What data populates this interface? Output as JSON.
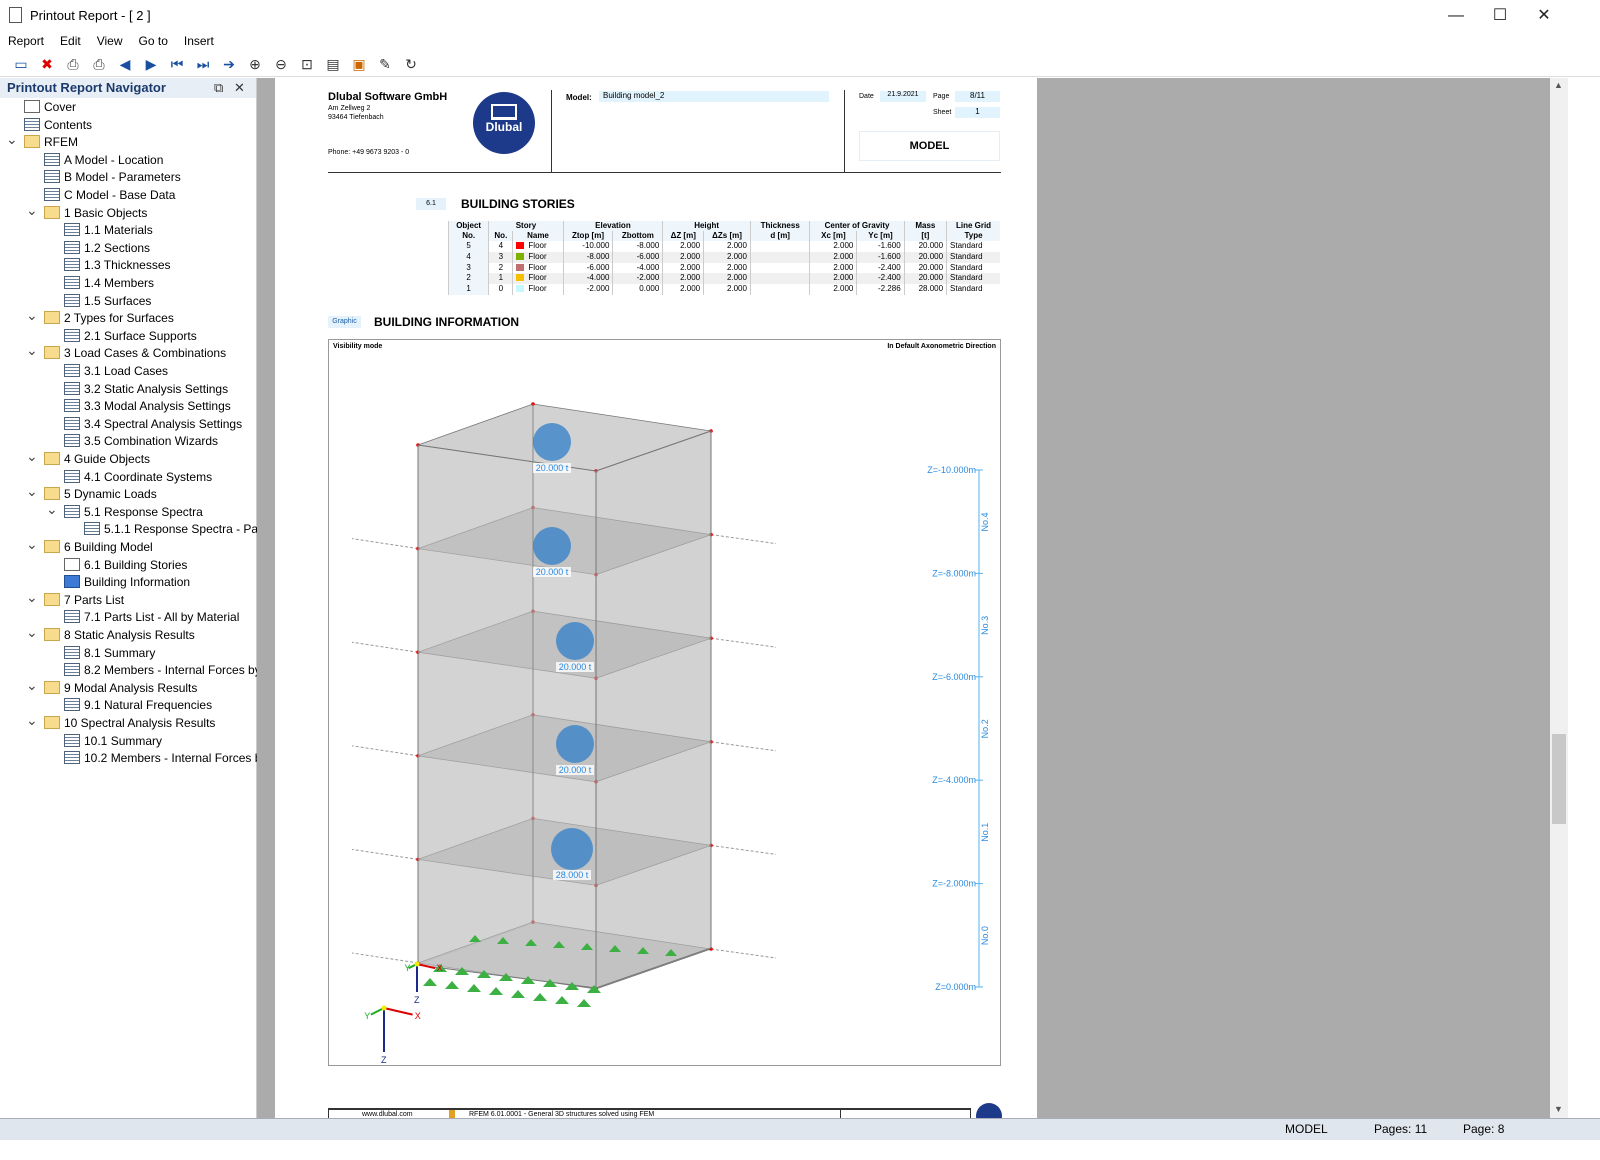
{
  "window": {
    "title": "Printout Report - [ 2 ]"
  },
  "menu": [
    "Report",
    "Edit",
    "View",
    "Go to",
    "Insert"
  ],
  "toolbar": [
    "new-report",
    "delete-report",
    "print",
    "print-setup",
    "previous",
    "next",
    "first",
    "last",
    "jump",
    "zoom-in",
    "zoom-out",
    "fit",
    "page-setup",
    "export",
    "edit",
    "refresh"
  ],
  "navigator": {
    "title": "Printout Report Navigator",
    "items": [
      {
        "label": "Cover",
        "level": 0,
        "icon": "page"
      },
      {
        "label": "Contents",
        "level": 0,
        "icon": "table"
      },
      {
        "label": "RFEM",
        "level": 0,
        "icon": "folder",
        "expanded": true
      },
      {
        "label": "A Model - Location",
        "level": 1,
        "icon": "table"
      },
      {
        "label": "B Model - Parameters",
        "level": 1,
        "icon": "table"
      },
      {
        "label": "C Model - Base Data",
        "level": 1,
        "icon": "table"
      },
      {
        "label": "1 Basic Objects",
        "level": 1,
        "icon": "folder",
        "expanded": true
      },
      {
        "label": "1.1 Materials",
        "level": 2,
        "icon": "table"
      },
      {
        "label": "1.2 Sections",
        "level": 2,
        "icon": "table"
      },
      {
        "label": "1.3 Thicknesses",
        "level": 2,
        "icon": "table"
      },
      {
        "label": "1.4 Members",
        "level": 2,
        "icon": "table"
      },
      {
        "label": "1.5 Surfaces",
        "level": 2,
        "icon": "table"
      },
      {
        "label": "2 Types for Surfaces",
        "level": 1,
        "icon": "folder",
        "expanded": true
      },
      {
        "label": "2.1 Surface Supports",
        "level": 2,
        "icon": "table"
      },
      {
        "label": "3 Load Cases & Combinations",
        "level": 1,
        "icon": "folder",
        "expanded": true
      },
      {
        "label": "3.1 Load Cases",
        "level": 2,
        "icon": "table"
      },
      {
        "label": "3.2 Static Analysis Settings",
        "level": 2,
        "icon": "table"
      },
      {
        "label": "3.3 Modal Analysis Settings",
        "level": 2,
        "icon": "table"
      },
      {
        "label": "3.4 Spectral Analysis Settings",
        "level": 2,
        "icon": "table"
      },
      {
        "label": "3.5 Combination Wizards",
        "level": 2,
        "icon": "table"
      },
      {
        "label": "4 Guide Objects",
        "level": 1,
        "icon": "folder",
        "expanded": true
      },
      {
        "label": "4.1 Coordinate Systems",
        "level": 2,
        "icon": "table"
      },
      {
        "label": "5 Dynamic Loads",
        "level": 1,
        "icon": "folder",
        "expanded": true
      },
      {
        "label": "5.1 Response Spectra",
        "level": 2,
        "icon": "table",
        "expanded": true
      },
      {
        "label": "5.1.1 Response Spectra - Pa...",
        "level": 3,
        "icon": "table"
      },
      {
        "label": "6 Building Model",
        "level": 1,
        "icon": "folder",
        "expanded": true
      },
      {
        "label": "6.1 Building Stories",
        "level": 2,
        "icon": "page"
      },
      {
        "label": "Building Information",
        "level": 2,
        "icon": "chart"
      },
      {
        "label": "7 Parts List",
        "level": 1,
        "icon": "folder",
        "expanded": true
      },
      {
        "label": "7.1 Parts List - All by Material",
        "level": 2,
        "icon": "table"
      },
      {
        "label": "8 Static Analysis Results",
        "level": 1,
        "icon": "folder",
        "expanded": true
      },
      {
        "label": "8.1 Summary",
        "level": 2,
        "icon": "table"
      },
      {
        "label": "8.2 Members - Internal Forces by...",
        "level": 2,
        "icon": "table"
      },
      {
        "label": "9 Modal Analysis Results",
        "level": 1,
        "icon": "folder",
        "expanded": true
      },
      {
        "label": "9.1 Natural Frequencies",
        "level": 2,
        "icon": "table"
      },
      {
        "label": "10 Spectral Analysis Results",
        "level": 1,
        "icon": "folder",
        "expanded": true
      },
      {
        "label": "10.1 Summary",
        "level": 2,
        "icon": "table"
      },
      {
        "label": "10.2 Members - Internal Forces b...",
        "level": 2,
        "icon": "table"
      }
    ]
  },
  "page": {
    "company": "Dlubal Software GmbH",
    "address1": "Am Zellweg 2",
    "address2": "93464 Tiefenbach",
    "phone": "Phone: +49 9673 9203 - 0",
    "logo_text": "Dlubal",
    "model_label": "Model:",
    "model_value": "Building model_2",
    "date_label": "Date",
    "date_value": "21.9.2021",
    "page_label": "Page",
    "page_value": "8/11",
    "sheet_label": "Sheet",
    "sheet_value": "1",
    "section": "MODEL",
    "table_num": "6.1",
    "table_title": "BUILDING STORIES",
    "headers": {
      "obj": "Object",
      "objno": "No.",
      "story": "Story",
      "no": "No.",
      "name": "Name",
      "elev": "Elevation",
      "ztop": "Ztop [m]",
      "zbot": "Zbottom",
      "height": "Height",
      "dz": "ΔZ [m]",
      "dzs": "ΔZs [m]",
      "thick": "Thickness",
      "d": "d [m]",
      "cog": "Center of Gravity",
      "xc": "Xc [m]",
      "yc": "Yc [m]",
      "mass": "Mass",
      "t": "[t]",
      "lg": "Line Grid",
      "type": "Type"
    },
    "rows": [
      {
        "obj": "5",
        "no": "4",
        "color": "#ff0000",
        "name": "Floor",
        "ztop": "-10.000",
        "zbot": "-8.000",
        "dz": "2.000",
        "dzs": "2.000",
        "d": "",
        "xc": "2.000",
        "yc": "-1.600",
        "mass": "20.000",
        "type": "Standard"
      },
      {
        "obj": "4",
        "no": "3",
        "color": "#80b000",
        "name": "Floor",
        "ztop": "-8.000",
        "zbot": "-6.000",
        "dz": "2.000",
        "dzs": "2.000",
        "d": "",
        "xc": "2.000",
        "yc": "-1.600",
        "mass": "20.000",
        "type": "Standard"
      },
      {
        "obj": "3",
        "no": "2",
        "color": "#c07070",
        "name": "Floor",
        "ztop": "-6.000",
        "zbot": "-4.000",
        "dz": "2.000",
        "dzs": "2.000",
        "d": "",
        "xc": "2.000",
        "yc": "-2.400",
        "mass": "20.000",
        "type": "Standard"
      },
      {
        "obj": "2",
        "no": "1",
        "color": "#f5c000",
        "name": "Floor",
        "ztop": "-4.000",
        "zbot": "-2.000",
        "dz": "2.000",
        "dzs": "2.000",
        "d": "",
        "xc": "2.000",
        "yc": "-2.400",
        "mass": "20.000",
        "type": "Standard"
      },
      {
        "obj": "1",
        "no": "0",
        "color": "#c8f8ff",
        "name": "Floor",
        "ztop": "-2.000",
        "zbot": "0.000",
        "dz": "2.000",
        "dzs": "2.000",
        "d": "",
        "xc": "2.000",
        "yc": "-2.286",
        "mass": "28.000",
        "type": "Standard"
      }
    ],
    "graphic_tag": "Graphic",
    "graphic_title": "BUILDING INFORMATION",
    "visibility": "Visibility mode",
    "direction": "In Default Axonometric Direction",
    "masses": [
      "20.000 t",
      "20.000 t",
      "20.000 t",
      "20.000 t",
      "28.000 t"
    ],
    "levels": [
      "Z=-10.000m",
      "Z=-8.000m",
      "Z=-6.000m",
      "Z=-4.000m",
      "Z=-2.000m",
      "Z=0.000m"
    ],
    "story_labels": [
      "No.4",
      "No.3",
      "No.2",
      "No.1",
      "No.0"
    ],
    "axes": {
      "x": "X",
      "y": "Y",
      "z": "Z"
    },
    "footer_url": "www.dlubal.com",
    "footer_text": "RFEM 6.01.0001 - General 3D structures solved using FEM"
  },
  "status": {
    "mode": "MODEL",
    "pages": "Pages: 11",
    "page": "Page: 8"
  }
}
